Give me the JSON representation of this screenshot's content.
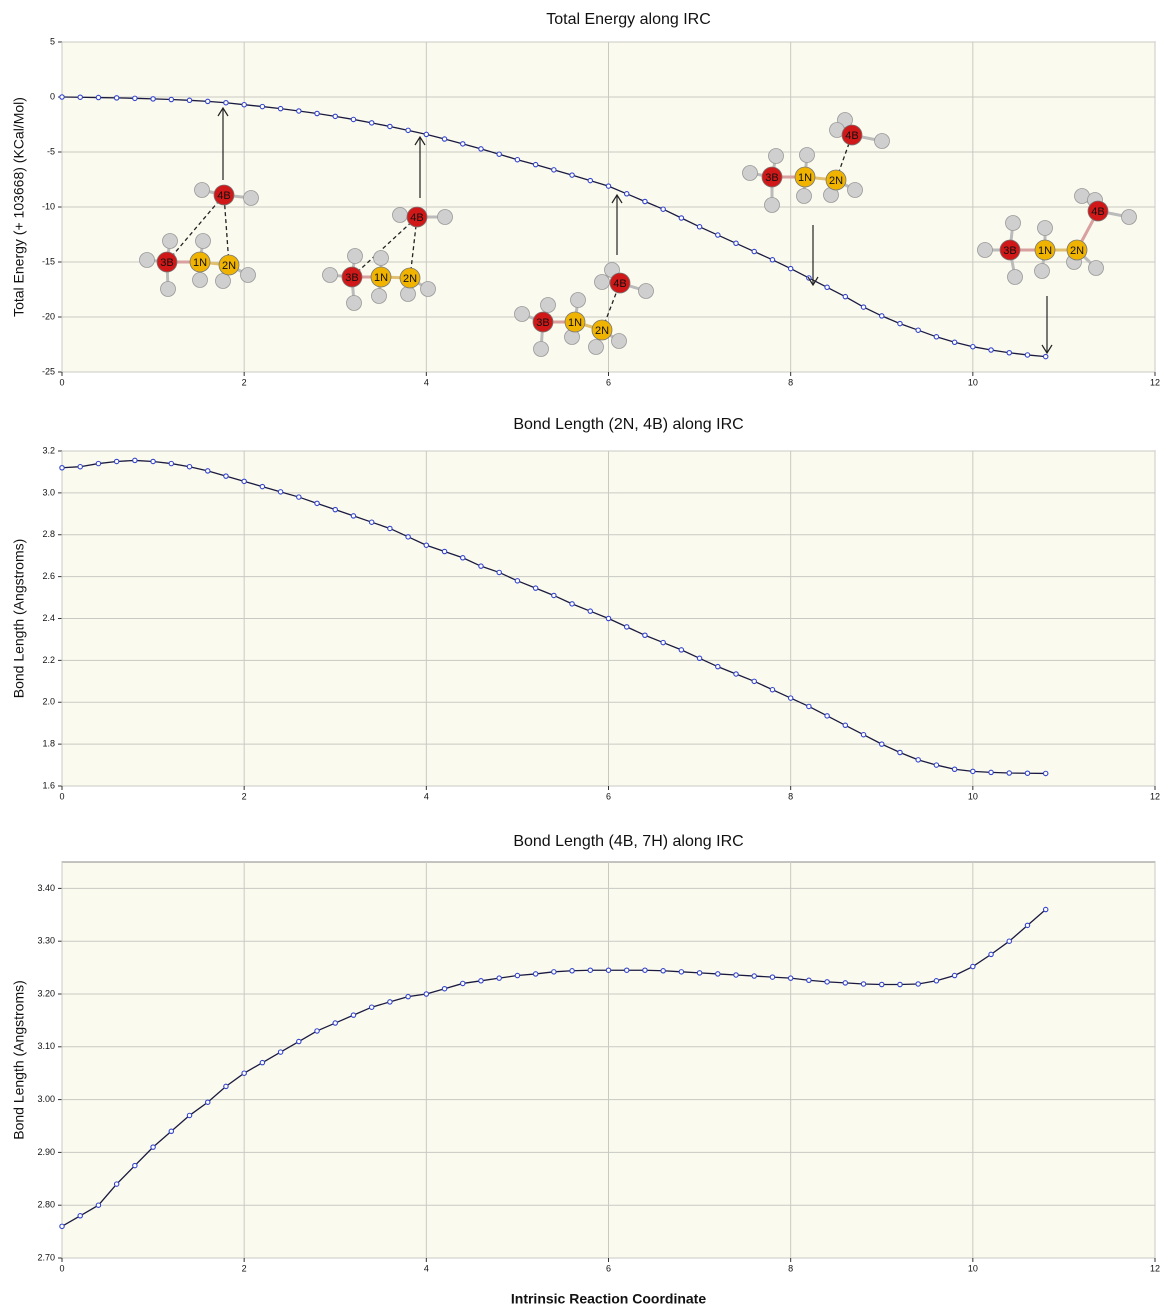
{
  "chart_data": [
    {
      "type": "line",
      "title": "Total Energy along IRC",
      "y_label": "Total Energy (+ 103668) (KCal/Mol)",
      "color": "#1a1a40",
      "marker_color": "#3344cc",
      "grid": true,
      "xlim": [
        0,
        12
      ],
      "xticks": [
        0,
        2,
        4,
        6,
        8,
        10,
        12
      ],
      "ylim": [
        -25,
        5
      ],
      "yticks": [
        -25,
        -20,
        -15,
        -10,
        -5,
        0,
        5
      ],
      "x": [
        0,
        0.2,
        0.4,
        0.6,
        0.8,
        1,
        1.2,
        1.4,
        1.6,
        1.8,
        2,
        2.2,
        2.4,
        2.6,
        2.8,
        3,
        3.2,
        3.4,
        3.6,
        3.8,
        4,
        4.2,
        4.4,
        4.6,
        4.8,
        5,
        5.2,
        5.4,
        5.6,
        5.8,
        6,
        6.2,
        6.4,
        6.6,
        6.8,
        7,
        7.2,
        7.4,
        7.6,
        7.8,
        8,
        8.2,
        8.4,
        8.6,
        8.8,
        9,
        9.2,
        9.4,
        9.6,
        9.8,
        10,
        10.2,
        10.4,
        10.6,
        10.8
      ],
      "values": [
        0,
        -0.02,
        -0.05,
        -0.08,
        -0.12,
        -0.17,
        -0.23,
        -0.3,
        -0.4,
        -0.52,
        -0.7,
        -0.87,
        -1.06,
        -1.27,
        -1.5,
        -1.76,
        -2.04,
        -2.35,
        -2.68,
        -3.03,
        -3.4,
        -3.82,
        -4.26,
        -4.72,
        -5.2,
        -5.7,
        -6.15,
        -6.62,
        -7.1,
        -7.6,
        -8.1,
        -8.8,
        -9.5,
        -10.2,
        -11,
        -11.8,
        -12.55,
        -13.3,
        -14.05,
        -14.8,
        -15.6,
        -16.45,
        -17.3,
        -18.15,
        -19.1,
        -19.9,
        -20.6,
        -21.2,
        -21.8,
        -22.3,
        -22.7,
        -23,
        -23.25,
        -23.45,
        -23.6
      ],
      "structures": [
        {
          "atoms": [
            "3B",
            "1N",
            "2N",
            "4B"
          ]
        },
        {
          "atoms": [
            "3B",
            "1N",
            "2N",
            "4B"
          ]
        },
        {
          "atoms": [
            "3B",
            "1N",
            "2N",
            "4B"
          ]
        },
        {
          "atoms": [
            "3B",
            "1N",
            "2N",
            "4B"
          ]
        },
        {
          "atoms": [
            "3B",
            "1N",
            "2N",
            "4B"
          ]
        }
      ]
    },
    {
      "type": "line",
      "title": "Bond Length (2N, 4B) along IRC",
      "y_label": "Bond Length (Angstroms)",
      "color": "#1a1a40",
      "marker_color": "#3344cc",
      "grid": true,
      "xlim": [
        0,
        12
      ],
      "xticks": [
        0,
        2,
        4,
        6,
        8,
        10,
        12
      ],
      "ylim": [
        1.6,
        3.2
      ],
      "yticks": [
        1.6,
        1.8,
        {
          "value": 2,
          "label": "2.0"
        },
        2.2,
        2.4,
        2.6,
        2.8,
        {
          "value": 3,
          "label": "3.0"
        },
        3.2
      ],
      "x": [
        0,
        0.2,
        0.4,
        0.6,
        0.8,
        1,
        1.2,
        1.4,
        1.6,
        1.8,
        2,
        2.2,
        2.4,
        2.6,
        2.8,
        3,
        3.2,
        3.4,
        3.6,
        3.8,
        4,
        4.2,
        4.4,
        4.6,
        4.8,
        5,
        5.2,
        5.4,
        5.6,
        5.8,
        6,
        6.2,
        6.4,
        6.6,
        6.8,
        7,
        7.2,
        7.4,
        7.6,
        7.8,
        8,
        8.2,
        8.4,
        8.6,
        8.8,
        9,
        9.2,
        9.4,
        9.6,
        9.8,
        10,
        10.2,
        10.4,
        10.6,
        10.8
      ],
      "values": [
        3.12,
        3.125,
        3.14,
        3.15,
        3.155,
        3.15,
        3.14,
        3.125,
        3.105,
        3.08,
        3.055,
        3.03,
        3.005,
        2.98,
        2.95,
        2.92,
        2.89,
        2.86,
        2.83,
        2.79,
        2.75,
        2.72,
        2.69,
        2.65,
        2.62,
        2.58,
        2.545,
        2.51,
        2.47,
        2.435,
        2.4,
        2.36,
        2.32,
        2.285,
        2.25,
        2.21,
        2.17,
        2.135,
        2.1,
        2.06,
        2.02,
        1.98,
        1.935,
        1.89,
        1.845,
        1.8,
        1.76,
        1.725,
        1.7,
        1.68,
        1.67,
        1.665,
        1.662,
        1.661,
        1.66
      ]
    },
    {
      "type": "line",
      "title": "Bond Length (4B, 7H) along IRC",
      "y_label": "Bond Length (Angstroms)",
      "x_label": "Intrinsic Reaction Coordinate",
      "color": "#1a1a40",
      "marker_color": "#3344cc",
      "grid": true,
      "xlim": [
        0,
        12
      ],
      "xticks": [
        0,
        2,
        4,
        6,
        8,
        10,
        12
      ],
      "ylim": [
        2.7,
        3.45
      ],
      "yticks": [
        {
          "value": 2.7,
          "label": "2.70"
        },
        {
          "value": 2.8,
          "label": "2.80"
        },
        {
          "value": 2.9,
          "label": "2.90"
        },
        {
          "value": 3,
          "label": "3.00"
        },
        {
          "value": 3.1,
          "label": "3.10"
        },
        {
          "value": 3.2,
          "label": "3.20"
        },
        {
          "value": 3.3,
          "label": "3.30"
        },
        {
          "value": 3.4,
          "label": "3.40"
        }
      ],
      "x": [
        0,
        0.2,
        0.4,
        0.6,
        0.8,
        1,
        1.2,
        1.4,
        1.6,
        1.8,
        2,
        2.2,
        2.4,
        2.6,
        2.8,
        3,
        3.2,
        3.4,
        3.6,
        3.8,
        4,
        4.2,
        4.4,
        4.6,
        4.8,
        5,
        5.2,
        5.4,
        5.6,
        5.8,
        6,
        6.2,
        6.4,
        6.6,
        6.8,
        7,
        7.2,
        7.4,
        7.6,
        7.8,
        8,
        8.2,
        8.4,
        8.6,
        8.8,
        9,
        9.2,
        9.4,
        9.6,
        9.8,
        10,
        10.2,
        10.4,
        10.6,
        10.8
      ],
      "values": [
        2.76,
        2.78,
        2.8,
        2.84,
        2.875,
        2.91,
        2.94,
        2.97,
        2.995,
        3.025,
        3.05,
        3.07,
        3.09,
        3.11,
        3.13,
        3.145,
        3.16,
        3.175,
        3.185,
        3.195,
        3.2,
        3.21,
        3.22,
        3.225,
        3.23,
        3.235,
        3.238,
        3.242,
        3.244,
        3.245,
        3.245,
        3.245,
        3.245,
        3.244,
        3.242,
        3.24,
        3.238,
        3.236,
        3.234,
        3.232,
        3.23,
        3.226,
        3.223,
        3.221,
        3.219,
        3.218,
        3.218,
        3.219,
        3.225,
        3.235,
        3.252,
        3.275,
        3.3,
        3.33,
        3.36
      ]
    }
  ]
}
